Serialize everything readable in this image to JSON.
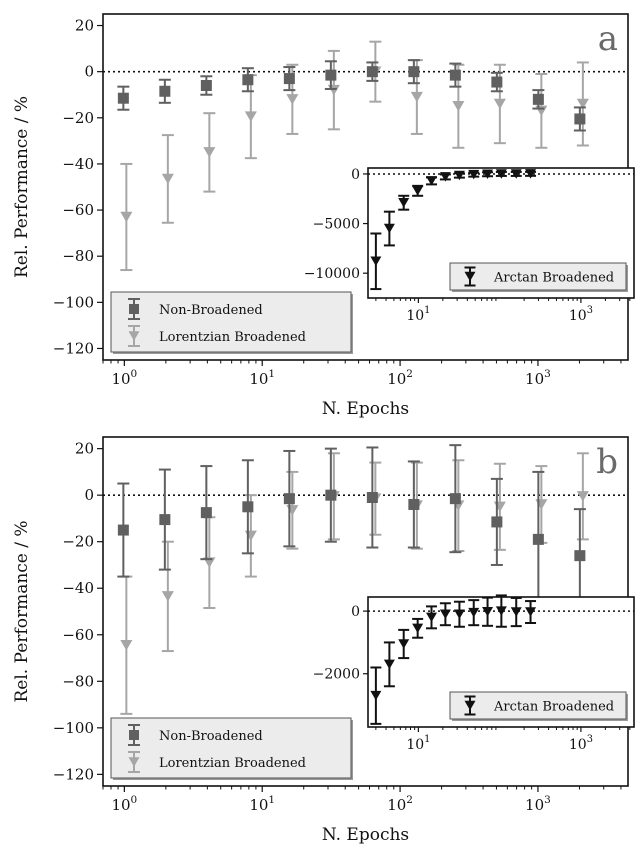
{
  "chart_data": [
    {
      "type": "scatter",
      "panel_label": "a",
      "xlabel": "N. Epochs",
      "ylabel": "Rel. Performance / %",
      "xscale": "log",
      "xlim": [
        0.7,
        4500
      ],
      "ylim": [
        -125,
        25
      ],
      "yticks": [
        20,
        0,
        -20,
        -40,
        -60,
        -80,
        -100,
        -120
      ],
      "xticks": [
        1,
        10,
        100,
        1000
      ],
      "xtick_labels": [
        "10^0",
        "10^1",
        "10^2",
        "10^3"
      ],
      "reference_line": 0,
      "grid": false,
      "legend": {
        "placement": "lower-left",
        "entries": [
          "Non-Broadened",
          "Lorentzian Broadened"
        ]
      },
      "series": [
        {
          "name": "Non-Broadened",
          "color": "#606060",
          "marker": "square",
          "points": [
            {
              "x": 1,
              "y": -11.5,
              "err": 5
            },
            {
              "x": 2,
              "y": -8.5,
              "err": 5
            },
            {
              "x": 4,
              "y": -6,
              "err": 4
            },
            {
              "x": 8,
              "y": -3.5,
              "err": 5
            },
            {
              "x": 16,
              "y": -3,
              "err": 5
            },
            {
              "x": 32,
              "y": -1.5,
              "err": 6
            },
            {
              "x": 64,
              "y": 0,
              "err": 4
            },
            {
              "x": 128,
              "y": 0,
              "err": 5
            },
            {
              "x": 256,
              "y": -1.5,
              "err": 5
            },
            {
              "x": 512,
              "y": -4.5,
              "err": 4
            },
            {
              "x": 1024,
              "y": -12,
              "err": 4
            },
            {
              "x": 2048,
              "y": -20.5,
              "err": 5
            }
          ]
        },
        {
          "name": "Lorentzian Broadened",
          "color": "#a6a6a6",
          "marker": "triangle-down",
          "points": [
            {
              "x": 1,
              "y": -63,
              "err": 23
            },
            {
              "x": 2,
              "y": -46.5,
              "err": 19
            },
            {
              "x": 4,
              "y": -35,
              "err": 17
            },
            {
              "x": 8,
              "y": -19.5,
              "err": 18
            },
            {
              "x": 16,
              "y": -12,
              "err": 15
            },
            {
              "x": 32,
              "y": -8,
              "err": 17
            },
            {
              "x": 64,
              "y": 0,
              "err": 13
            },
            {
              "x": 128,
              "y": -11,
              "err": 16
            },
            {
              "x": 256,
              "y": -15,
              "err": 18
            },
            {
              "x": 512,
              "y": -14,
              "err": 17
            },
            {
              "x": 1024,
              "y": -17,
              "err": 16
            },
            {
              "x": 2048,
              "y": -14,
              "err": 18
            }
          ]
        }
      ],
      "inset": {
        "xscale": "log",
        "xlim": [
          2.4,
          4500
        ],
        "ylim": [
          -12500,
          600
        ],
        "yticks": [
          0,
          -5000,
          -10000
        ],
        "ytick_labels": [
          "0",
          "−5000",
          "−10000"
        ],
        "xticks": [
          10,
          1000
        ],
        "xtick_labels": [
          "10^1",
          "10^3"
        ],
        "reference_line": 0,
        "legend": {
          "placement": "lower-right",
          "entries": [
            "Arctan Broadened"
          ]
        },
        "series": [
          {
            "name": "Arctan Broadened",
            "color": "#111111",
            "marker": "triangle-down",
            "points": [
              {
                "x": 3,
                "y": -8800,
                "err": 2800
              },
              {
                "x": 4.4,
                "y": -5500,
                "err": 1700
              },
              {
                "x": 6.6,
                "y": -2900,
                "err": 700
              },
              {
                "x": 9.8,
                "y": -1700,
                "err": 500
              },
              {
                "x": 14.5,
                "y": -700,
                "err": 350
              },
              {
                "x": 21.5,
                "y": -300,
                "err": 250
              },
              {
                "x": 32,
                "y": -150,
                "err": 220
              },
              {
                "x": 48,
                "y": -70,
                "err": 200
              },
              {
                "x": 71,
                "y": -30,
                "err": 200
              },
              {
                "x": 105,
                "y": 0,
                "err": 200
              },
              {
                "x": 160,
                "y": 0,
                "err": 200
              },
              {
                "x": 240,
                "y": 10,
                "err": 200
              }
            ]
          }
        ]
      }
    },
    {
      "type": "scatter",
      "panel_label": "b",
      "xlabel": "N. Epochs",
      "ylabel": "Rel. Performance / %",
      "xscale": "log",
      "xlim": [
        0.7,
        4500
      ],
      "ylim": [
        -125,
        25
      ],
      "yticks": [
        20,
        0,
        -20,
        -40,
        -60,
        -80,
        -100,
        -120
      ],
      "xticks": [
        1,
        10,
        100,
        1000
      ],
      "xtick_labels": [
        "10^0",
        "10^1",
        "10^2",
        "10^3"
      ],
      "reference_line": 0,
      "grid": false,
      "legend": {
        "placement": "lower-left",
        "entries": [
          "Non-Broadened",
          "Lorentzian Broadened"
        ]
      },
      "series": [
        {
          "name": "Non-Broadened",
          "color": "#606060",
          "marker": "square",
          "points": [
            {
              "x": 1,
              "y": -15,
              "err": 20
            },
            {
              "x": 2,
              "y": -10.5,
              "err": 21.5
            },
            {
              "x": 4,
              "y": -7.5,
              "err": 20
            },
            {
              "x": 8,
              "y": -5,
              "err": 20
            },
            {
              "x": 16,
              "y": -1.5,
              "err": 20.5
            },
            {
              "x": 32,
              "y": 0,
              "err": 20
            },
            {
              "x": 64,
              "y": -1,
              "err": 21.5
            },
            {
              "x": 128,
              "y": -4,
              "err": 18.5
            },
            {
              "x": 256,
              "y": -1.5,
              "err": 23
            },
            {
              "x": 512,
              "y": -11.5,
              "err": 18.5
            },
            {
              "x": 1024,
              "y": -19,
              "err": 29
            },
            {
              "x": 2048,
              "y": -26,
              "err": 20
            }
          ]
        },
        {
          "name": "Lorentzian Broadened",
          "color": "#a6a6a6",
          "marker": "triangle-down",
          "points": [
            {
              "x": 1,
              "y": -64.5,
              "err": 29.5
            },
            {
              "x": 2,
              "y": -43.5,
              "err": 23.5
            },
            {
              "x": 4,
              "y": -29,
              "err": 19.5
            },
            {
              "x": 8,
              "y": -17.5,
              "err": 17.5
            },
            {
              "x": 16,
              "y": -6.5,
              "err": 16.5
            },
            {
              "x": 32,
              "y": -0.5,
              "err": 18.5
            },
            {
              "x": 64,
              "y": -1.5,
              "err": 15.5
            },
            {
              "x": 128,
              "y": -4.5,
              "err": 18.5
            },
            {
              "x": 256,
              "y": -4.5,
              "err": 19.5
            },
            {
              "x": 512,
              "y": -5,
              "err": 18.5
            },
            {
              "x": 1024,
              "y": -4,
              "err": 16.5
            },
            {
              "x": 2048,
              "y": -0.5,
              "err": 18.5
            }
          ]
        }
      ],
      "inset": {
        "xscale": "log",
        "xlim": [
          2.4,
          4500
        ],
        "ylim": [
          -3700,
          450
        ],
        "yticks": [
          0,
          -2000
        ],
        "ytick_labels": [
          "0",
          "−2000"
        ],
        "xticks": [
          10,
          1000
        ],
        "xtick_labels": [
          "10^1",
          "10^3"
        ],
        "reference_line": 0,
        "legend": {
          "placement": "lower-right",
          "entries": [
            "Arctan Broadened"
          ]
        },
        "series": [
          {
            "name": "Arctan Broadened",
            "color": "#111111",
            "marker": "triangle-down",
            "points": [
              {
                "x": 3,
                "y": -2700,
                "err": 900
              },
              {
                "x": 4.4,
                "y": -1700,
                "err": 700
              },
              {
                "x": 6.6,
                "y": -1050,
                "err": 450
              },
              {
                "x": 9.8,
                "y": -550,
                "err": 300
              },
              {
                "x": 14.5,
                "y": -200,
                "err": 350
              },
              {
                "x": 21.5,
                "y": -100,
                "err": 350
              },
              {
                "x": 32,
                "y": -100,
                "err": 400
              },
              {
                "x": 48,
                "y": -50,
                "err": 400
              },
              {
                "x": 71,
                "y": -20,
                "err": 450
              },
              {
                "x": 105,
                "y": 0,
                "err": 500
              },
              {
                "x": 160,
                "y": -30,
                "err": 450
              },
              {
                "x": 240,
                "y": -30,
                "err": 350
              }
            ]
          }
        ]
      }
    }
  ]
}
